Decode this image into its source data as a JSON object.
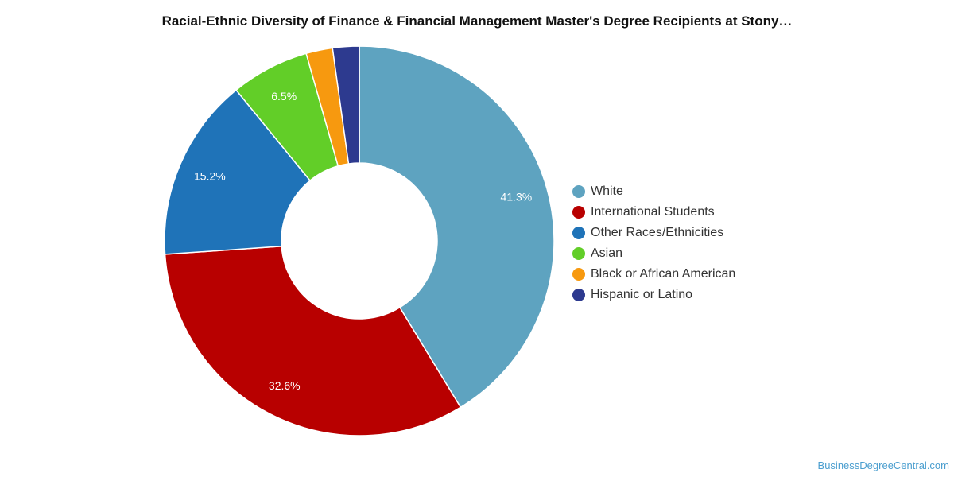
{
  "chart_data": {
    "type": "pie",
    "variant": "donut",
    "title": "Racial-Ethnic Diversity of Finance & Financial Management Master's Degree Recipients at Stony…",
    "categories": [
      "White",
      "International Students",
      "Other Races/Ethnicities",
      "Asian",
      "Black or African American",
      "Hispanic or Latino"
    ],
    "values": [
      41.3,
      32.6,
      15.2,
      6.5,
      2.2,
      2.2
    ],
    "data_labels": [
      "41.3%",
      "32.6%",
      "15.2%",
      "6.5%",
      "",
      ""
    ],
    "colors": [
      "#5ea3c0",
      "#b80000",
      "#1f73b8",
      "#62ce28",
      "#f7990f",
      "#2d3a8f"
    ],
    "legend_position": "right"
  },
  "watermark": "BusinessDegreeCentral.com"
}
